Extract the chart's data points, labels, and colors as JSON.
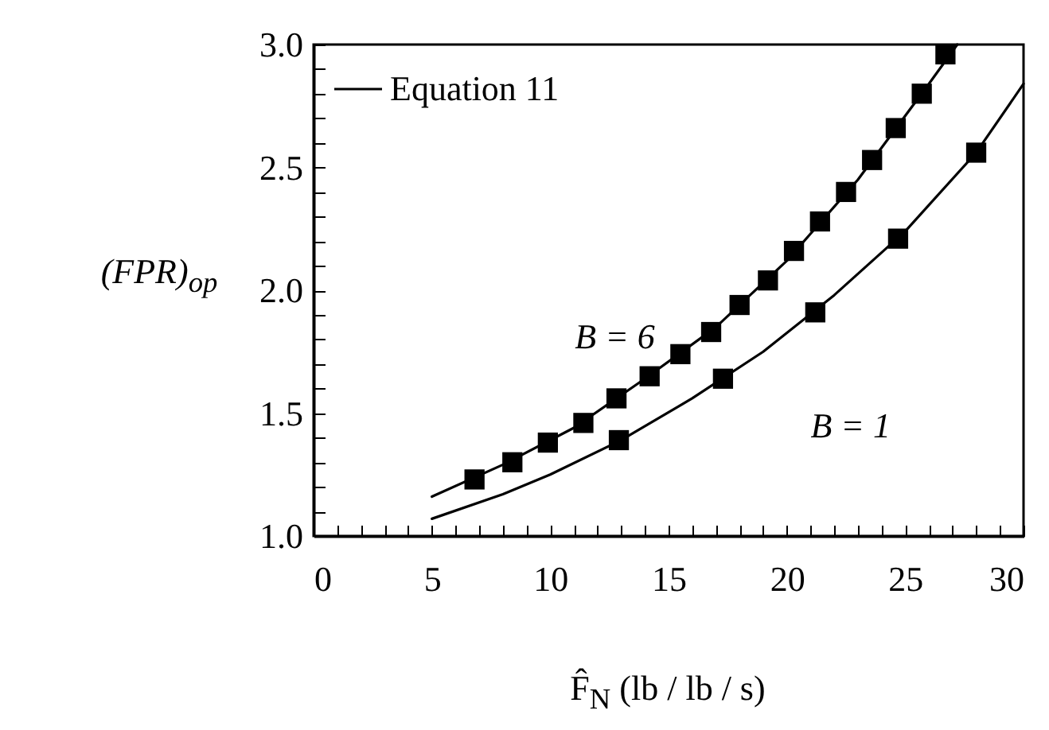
{
  "chart_data": {
    "type": "scatter",
    "xlabel": "F̂$_{N}$  (lb / lb / s)",
    "ylabel": "(FPR)$_{op}$",
    "xlim": [
      0,
      30
    ],
    "ylim": [
      1.0,
      3.0
    ],
    "xticks": [
      0,
      {
        "value": 1,
        "label": null
      },
      {
        "value": 2,
        "label": null
      },
      {
        "value": 3,
        "label": null
      },
      {
        "value": 4,
        "label": null
      },
      5,
      {
        "value": 6,
        "label": null
      },
      {
        "value": 7,
        "label": null
      },
      {
        "value": 8,
        "label": null
      },
      {
        "value": 9,
        "label": null
      },
      10,
      {
        "value": 11,
        "label": null
      },
      {
        "value": 12,
        "label": null
      },
      {
        "value": 13,
        "label": null
      },
      {
        "value": 14,
        "label": null
      },
      15,
      {
        "value": 16,
        "label": null
      },
      {
        "value": 17,
        "label": null
      },
      {
        "value": 18,
        "label": null
      },
      {
        "value": 19,
        "label": null
      },
      20,
      {
        "value": 21,
        "label": null
      },
      {
        "value": 22,
        "label": null
      },
      {
        "value": 23,
        "label": null
      },
      {
        "value": 24,
        "label": null
      },
      25,
      {
        "value": 26,
        "label": null
      },
      {
        "value": 27,
        "label": null
      },
      {
        "value": 28,
        "label": null
      },
      {
        "value": 29,
        "label": null
      },
      30
    ],
    "yticks": [
      {
        "value": 1.0,
        "label": "1.0"
      },
      {
        "value": 1.1,
        "label": null
      },
      {
        "value": 1.2,
        "label": null
      },
      {
        "value": 1.3,
        "label": null
      },
      {
        "value": 1.4,
        "label": null
      },
      1.5,
      {
        "value": 1.6,
        "label": null
      },
      {
        "value": 1.7,
        "label": null
      },
      {
        "value": 1.8,
        "label": null
      },
      {
        "value": 1.9,
        "label": null
      },
      {
        "value": 2.0,
        "label": "2.0"
      },
      {
        "value": 2.1,
        "label": null
      },
      {
        "value": 2.2,
        "label": null
      },
      {
        "value": 2.3,
        "label": null
      },
      {
        "value": 2.4,
        "label": null
      },
      2.5,
      {
        "value": 2.6,
        "label": null
      },
      {
        "value": 2.7,
        "label": null
      },
      {
        "value": 2.8,
        "label": null
      },
      {
        "value": 2.9,
        "label": null
      },
      {
        "value": 3.0,
        "label": "3.0"
      }
    ],
    "grid": false,
    "legend": "top left",
    "series": [
      {
        "name": "Equation 11",
        "type": "line",
        "color": "#000000",
        "x": [
          5,
          8,
          11,
          14,
          17,
          20,
          23,
          26,
          27.2
        ],
        "values": [
          1.16,
          1.29,
          1.44,
          1.64,
          1.85,
          2.12,
          2.45,
          2.84,
          3.0
        ]
      },
      {
        "type": "line",
        "color": "#000000",
        "x": [
          5,
          8,
          10,
          13,
          16,
          19,
          22,
          25,
          28,
          30
        ],
        "values": [
          1.07,
          1.17,
          1.25,
          1.39,
          1.56,
          1.75,
          1.98,
          2.24,
          2.56,
          2.84
        ]
      },
      {
        "marker": "square",
        "color": "#000000",
        "x": [
          6.8,
          8.4,
          9.9,
          11.4,
          12.8,
          14.2,
          15.5,
          16.8,
          18.0,
          19.2,
          20.3,
          21.4,
          22.5,
          23.6,
          24.6,
          25.7,
          26.7
        ],
        "values": [
          1.23,
          1.3,
          1.38,
          1.46,
          1.56,
          1.65,
          1.74,
          1.83,
          1.94,
          2.04,
          2.16,
          2.28,
          2.4,
          2.53,
          2.66,
          2.8,
          2.96
        ]
      },
      {
        "marker": "square",
        "color": "#000000",
        "x": [
          12.9,
          17.3,
          21.2,
          24.7,
          28.0
        ],
        "values": [
          1.39,
          1.64,
          1.91,
          2.21,
          2.56
        ]
      }
    ],
    "annotations": [
      {
        "text": "B = 6",
        "x": 14,
        "y": 1.64
      },
      {
        "text": "B = 1",
        "x": 21,
        "y": 1.9
      }
    ]
  }
}
